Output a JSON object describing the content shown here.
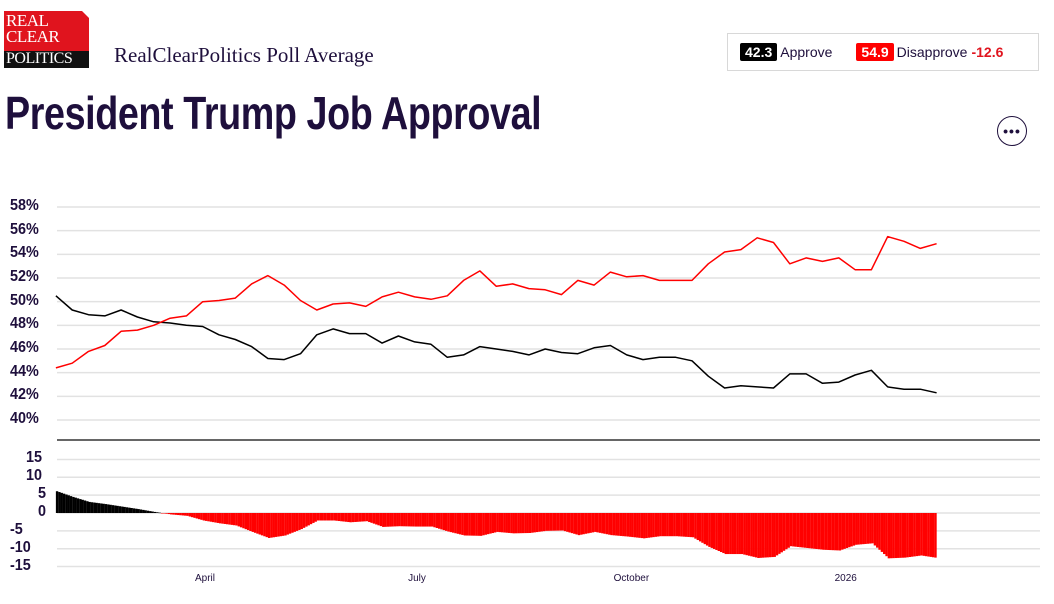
{
  "header": {
    "logo_lines": [
      "REAL",
      "CLEAR",
      "POLITICS"
    ],
    "subtitle": "RealClearPolitics Poll Average",
    "title": "President Trump Job Approval",
    "more_icon": "ellipsis-icon"
  },
  "legend": {
    "approve_value": "42.3",
    "approve_label": "Approve",
    "disapprove_value": "54.9",
    "disapprove_label": "Disapprove",
    "spread": "-12.6"
  },
  "colors": {
    "approve": "#000000",
    "disapprove": "#ff0000",
    "spread_positive": "#000000",
    "spread_negative": "#ff0000",
    "title": "#1e0f3c"
  },
  "chart_data": [
    {
      "type": "line",
      "ylim": [
        40,
        58
      ],
      "ytick_labels": [
        "58%",
        "56%",
        "54%",
        "52%",
        "50%",
        "48%",
        "46%",
        "44%",
        "42%",
        "40%"
      ],
      "grid": true,
      "x": [
        "2025-01-27",
        "2025-02-03",
        "2025-02-10",
        "2025-02-17",
        "2025-02-24",
        "2025-03-03",
        "2025-03-10",
        "2025-03-17",
        "2025-03-24",
        "2025-03-31",
        "2025-04-07",
        "2025-04-14",
        "2025-04-21",
        "2025-04-28",
        "2025-05-05",
        "2025-05-12",
        "2025-05-19",
        "2025-05-26",
        "2025-06-02",
        "2025-06-09",
        "2025-06-16",
        "2025-06-23",
        "2025-06-30",
        "2025-07-07",
        "2025-07-14",
        "2025-07-21",
        "2025-07-28",
        "2025-08-04",
        "2025-08-11",
        "2025-08-18",
        "2025-08-25",
        "2025-09-01",
        "2025-09-08",
        "2025-09-15",
        "2025-09-22",
        "2025-09-29",
        "2025-10-06",
        "2025-10-13",
        "2025-10-20",
        "2025-10-27",
        "2025-11-03",
        "2025-11-10",
        "2025-11-17",
        "2025-11-24",
        "2025-12-01",
        "2025-12-08",
        "2025-12-15",
        "2025-12-22",
        "2025-12-29",
        "2026-01-05",
        "2026-01-12",
        "2026-01-19",
        "2026-01-26",
        "2026-02-02",
        "2026-02-09"
      ],
      "series": [
        {
          "name": "Approve",
          "values": [
            50.5,
            49.3,
            48.9,
            48.8,
            49.3,
            48.7,
            48.3,
            48.2,
            48.0,
            47.9,
            47.2,
            46.8,
            46.2,
            45.2,
            45.1,
            45.6,
            47.2,
            47.7,
            47.3,
            47.3,
            46.5,
            47.1,
            46.6,
            46.4,
            45.3,
            45.5,
            46.2,
            46.0,
            45.8,
            45.5,
            46.0,
            45.7,
            45.6,
            46.1,
            46.3,
            45.5,
            45.1,
            45.3,
            45.3,
            45.0,
            43.7,
            42.7,
            42.9,
            42.8,
            42.7,
            43.9,
            43.9,
            43.1,
            43.2,
            43.8,
            44.2,
            42.8,
            42.6,
            42.6,
            42.3
          ]
        },
        {
          "name": "Disapprove",
          "values": [
            44.4,
            44.8,
            45.8,
            46.3,
            47.5,
            47.6,
            48.0,
            48.6,
            48.8,
            50.0,
            50.1,
            50.3,
            51.5,
            52.2,
            51.4,
            50.1,
            49.3,
            49.8,
            49.9,
            49.6,
            50.4,
            50.8,
            50.4,
            50.2,
            50.5,
            51.8,
            52.6,
            51.3,
            51.5,
            51.1,
            51.0,
            50.6,
            51.8,
            51.4,
            52.5,
            52.1,
            52.2,
            51.8,
            51.8,
            51.8,
            53.2,
            54.2,
            54.4,
            55.4,
            55.0,
            53.2,
            53.7,
            53.4,
            53.7,
            52.7,
            52.7,
            55.5,
            55.1,
            54.5,
            54.9
          ]
        }
      ]
    },
    {
      "type": "bar",
      "description_of_values": "Approve minus Disapprove spread",
      "ylim": [
        -15,
        15
      ],
      "ytick_labels": [
        "15",
        "10",
        "5",
        "0",
        "-5",
        "-10",
        "-15"
      ],
      "xtick_labels": [
        "April",
        "July",
        "October",
        "2026"
      ],
      "grid": true
    }
  ]
}
